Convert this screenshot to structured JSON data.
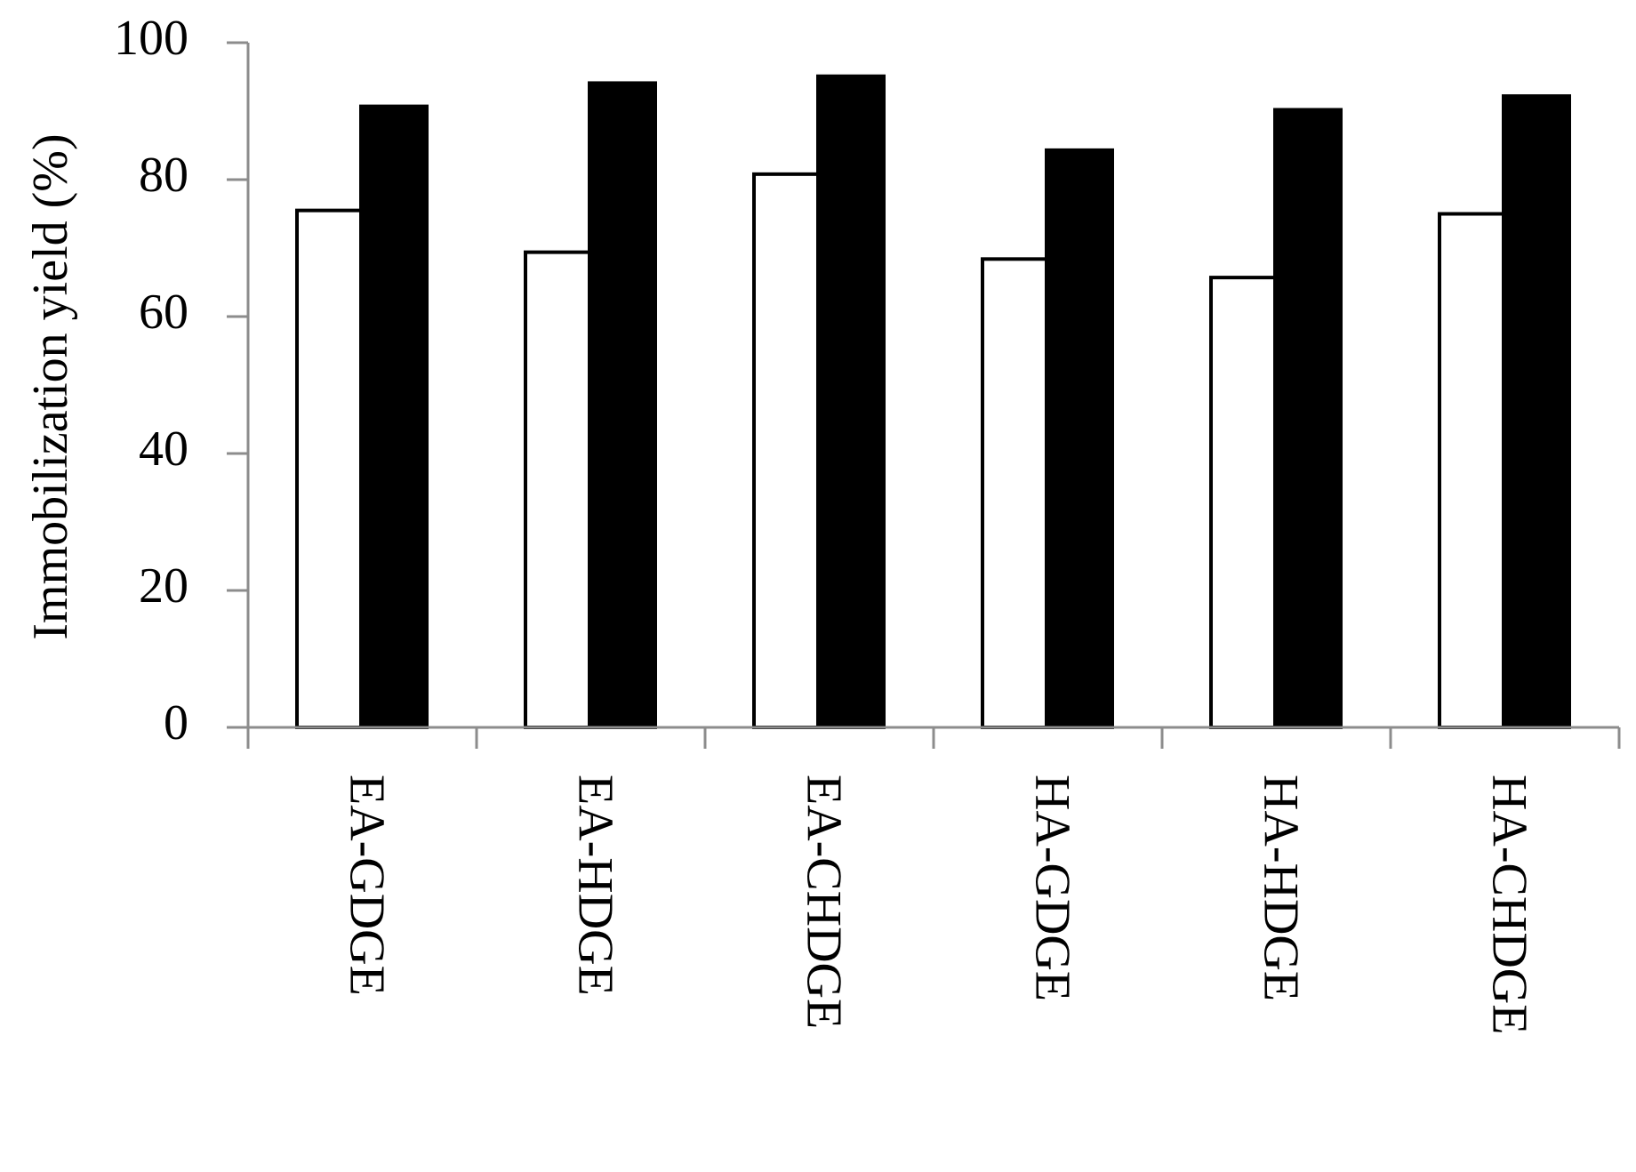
{
  "chart_data": {
    "type": "bar",
    "y_label": "Immobilization yield (%)",
    "categories": [
      "EA-GDGE",
      "EA-HDGE",
      "EA-CHDGE",
      "HA-GDGE",
      "HA-HDGE",
      "HA-CHDGE"
    ],
    "series": [
      {
        "color": "#ffffff",
        "values": [
          75.5,
          69.4,
          80.8,
          68.4,
          65.7,
          75.0
        ]
      },
      {
        "color": "#000000",
        "values": [
          90.7,
          94.1,
          95.1,
          84.3,
          90.2,
          92.2
        ]
      }
    ],
    "ylim": [
      0,
      100
    ],
    "yticks": [
      0,
      20,
      40,
      60,
      80,
      100
    ],
    "grid": false
  }
}
